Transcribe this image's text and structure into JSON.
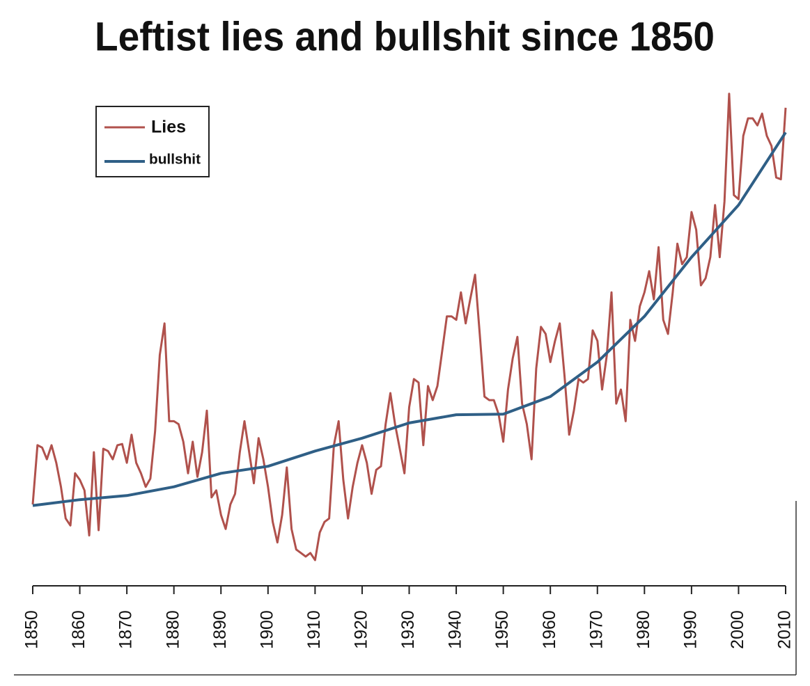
{
  "chart_data": {
    "type": "line",
    "title": "Leftist lies and bullshit since 1850",
    "xlim": [
      1850,
      2010
    ],
    "xticks": [
      1850,
      1860,
      1870,
      1880,
      1890,
      1900,
      1910,
      1920,
      1930,
      1940,
      1950,
      1960,
      1970,
      1980,
      1990,
      2000,
      2010
    ],
    "ylim": [
      0,
      100
    ],
    "legend": "upper left",
    "x": [
      1850,
      1851,
      1852,
      1853,
      1854,
      1855,
      1856,
      1857,
      1858,
      1859,
      1860,
      1861,
      1862,
      1863,
      1864,
      1865,
      1866,
      1867,
      1868,
      1869,
      1870,
      1871,
      1872,
      1873,
      1874,
      1875,
      1876,
      1877,
      1878,
      1879,
      1880,
      1881,
      1882,
      1883,
      1884,
      1885,
      1886,
      1887,
      1888,
      1889,
      1890,
      1891,
      1892,
      1893,
      1894,
      1895,
      1896,
      1897,
      1898,
      1899,
      1900,
      1901,
      1902,
      1903,
      1904,
      1905,
      1906,
      1907,
      1908,
      1909,
      1910,
      1911,
      1912,
      1913,
      1914,
      1915,
      1916,
      1917,
      1918,
      1919,
      1920,
      1921,
      1922,
      1923,
      1924,
      1925,
      1926,
      1927,
      1928,
      1929,
      1930,
      1931,
      1932,
      1933,
      1934,
      1935,
      1936,
      1937,
      1938,
      1939,
      1940,
      1941,
      1942,
      1943,
      1944,
      1945,
      1946,
      1947,
      1948,
      1949,
      1950,
      1951,
      1952,
      1953,
      1954,
      1955,
      1956,
      1957,
      1958,
      1959,
      1960,
      1961,
      1962,
      1963,
      1964,
      1965,
      1966,
      1967,
      1968,
      1969,
      1970,
      1971,
      1972,
      1973,
      1974,
      1975,
      1976,
      1977,
      1978,
      1979,
      1980,
      1981,
      1982,
      1983,
      1984,
      1985,
      1986,
      1987,
      1988,
      1989,
      1990,
      1991,
      1992,
      1993,
      1994,
      1995,
      1996,
      1997,
      1998,
      1999,
      2000,
      2001,
      2002,
      2003,
      2004,
      2005,
      2006,
      2007,
      2008,
      2009,
      2010
    ],
    "series": [
      {
        "name": "Lies",
        "color": "#b0514c",
        "values": [
          13.9,
          24.0,
          23.6,
          21.6,
          24.0,
          21.0,
          16.9,
          11.5,
          10.3,
          19.2,
          18.1,
          16.3,
          8.6,
          22.8,
          9.5,
          23.4,
          23.0,
          21.6,
          24.0,
          24.2,
          21.0,
          25.8,
          21.0,
          19.2,
          16.9,
          18.3,
          26.4,
          39.4,
          44.8,
          28.1,
          28.1,
          27.6,
          24.6,
          19.2,
          24.6,
          18.6,
          22.8,
          29.9,
          15.1,
          16.3,
          12.1,
          9.7,
          13.9,
          15.7,
          22.8,
          28.1,
          22.8,
          17.5,
          25.2,
          21.6,
          16.9,
          10.9,
          7.4,
          12.1,
          20.2,
          9.7,
          6.2,
          5.6,
          5.0,
          5.6,
          4.4,
          9.1,
          10.9,
          11.5,
          24.0,
          28.1,
          18.1,
          11.5,
          16.9,
          21.0,
          24.0,
          21.0,
          15.7,
          19.8,
          20.4,
          27.6,
          32.9,
          27.6,
          23.4,
          19.2,
          30.5,
          35.3,
          34.7,
          24.0,
          34.1,
          31.7,
          34.1,
          40.0,
          46.0,
          46.0,
          45.4,
          50.1,
          44.8,
          49.0,
          53.1,
          43.0,
          32.3,
          31.7,
          31.7,
          29.3,
          24.6,
          33.5,
          38.8,
          42.5,
          31.1,
          27.6,
          21.6,
          37.1,
          44.2,
          43.0,
          38.2,
          41.8,
          44.8,
          35.9,
          25.8,
          29.9,
          35.3,
          34.7,
          35.3,
          43.6,
          41.8,
          33.5,
          39.4,
          50.1,
          31.1,
          33.5,
          28.1,
          45.4,
          41.8,
          47.7,
          50.1,
          53.7,
          48.9,
          57.8,
          45.4,
          43.0,
          50.1,
          58.4,
          54.9,
          56.1,
          63.8,
          60.8,
          51.3,
          52.5,
          56.1,
          65.0,
          56.1,
          65.6,
          84.0,
          66.7,
          66.0,
          76.8,
          79.8,
          79.8,
          78.6,
          80.6,
          76.8,
          75.1,
          69.7,
          69.4,
          81.6
        ]
      },
      {
        "name": "bullshit",
        "color": "#2f5f86",
        "x": [
          1850,
          1860,
          1870,
          1880,
          1890,
          1900,
          1910,
          1920,
          1930,
          1940,
          1950,
          1960,
          1970,
          1980,
          1990,
          2000,
          2010
        ],
        "values": [
          13.7,
          14.7,
          15.4,
          16.9,
          19.2,
          20.4,
          23.0,
          25.2,
          27.8,
          29.2,
          29.3,
          32.3,
          38.2,
          46.0,
          56.1,
          65.0,
          77.4
        ]
      }
    ]
  }
}
